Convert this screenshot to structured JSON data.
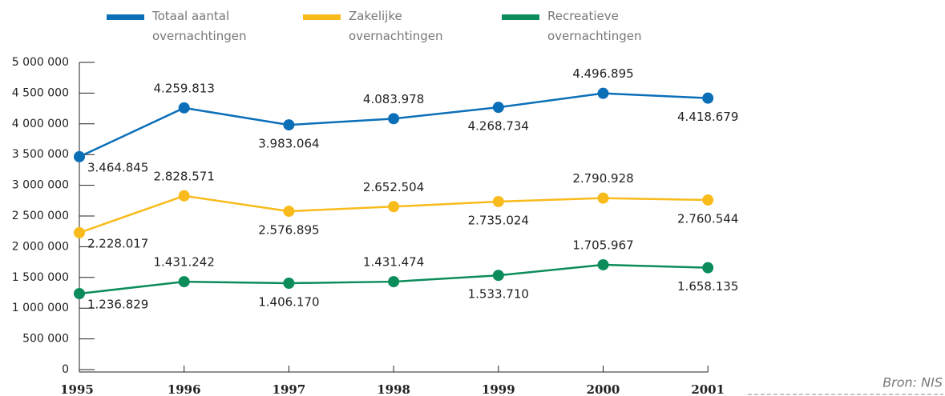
{
  "chart_data": {
    "type": "line",
    "categories": [
      "1995",
      "1996",
      "1997",
      "1998",
      "1999",
      "2000",
      "2001"
    ],
    "series": [
      {
        "name": "Totaal aantal overnachtingen",
        "color": "#0b6fb8",
        "values": [
          3464845,
          4259813,
          3983064,
          4083978,
          4268734,
          4496895,
          4418679
        ],
        "value_labels": [
          "3.464.845",
          "4.259.813",
          "3.983.064",
          "4.083.978",
          "4.268.734",
          "4.496.895",
          "4.418.679"
        ]
      },
      {
        "name": "Zakelijke overnachtingen",
        "color": "#f9bb1b",
        "values": [
          2228017,
          2828571,
          2576895,
          2652504,
          2735024,
          2790928,
          2760544
        ],
        "value_labels": [
          "2.228.017",
          "2.828.571",
          "2.576.895",
          "2.652.504",
          "2.735.024",
          "2.790.928",
          "2.760.544"
        ]
      },
      {
        "name": "Recreatieve overnachtingen",
        "color": "#0b8c5a",
        "values": [
          1236829,
          1431242,
          1406170,
          1431474,
          1533710,
          1705967,
          1658135
        ],
        "value_labels": [
          "1.236.829",
          "1.431.242",
          "1.406.170",
          "1.431.474",
          "1.533.710",
          "1.705.967",
          "1.658.135"
        ]
      }
    ],
    "ylim": [
      0,
      5000000
    ],
    "yticks": [
      0,
      {
        "value": 500000,
        "label": "500 000"
      },
      {
        "value": 1000000,
        "label": "1 000 000"
      },
      {
        "value": 1500000,
        "label": "1 500 000"
      },
      {
        "value": 2000000,
        "label": "2 000 000"
      },
      {
        "value": 2500000,
        "label": "2 500 000"
      },
      {
        "value": 3000000,
        "label": "3 000 000"
      },
      {
        "value": 3500000,
        "label": "3 500 000"
      },
      {
        "value": 4000000,
        "label": "4 000 000"
      },
      {
        "value": 4500000,
        "label": "4 500 000"
      },
      {
        "value": 5000000,
        "label": "5 000 000"
      }
    ],
    "source": "Bron: NIS"
  }
}
